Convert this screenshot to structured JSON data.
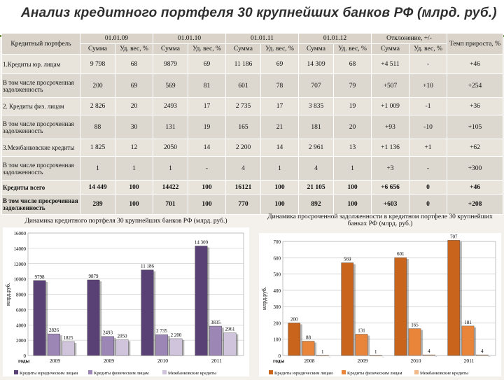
{
  "page": {
    "title": "Анализ кредитного портфеля 30 крупнейших банков РФ (млрд. руб.)"
  },
  "table": {
    "col_label": "Кредитный портфель",
    "dates": [
      "01.01.09",
      "01.01.10",
      "01.01.11",
      "01.01.12"
    ],
    "deviation": "Отклонение, +/-",
    "growth": "Темп прироста, %",
    "sub_sum": "Сумма",
    "sub_share": "Уд. вес, %",
    "rows": [
      {
        "label": "1.Кредиты юр. лицам",
        "cells": [
          "9 798",
          "68",
          "9879",
          "69",
          "11 186",
          "69",
          "14 309",
          "68",
          "+4 511",
          "-",
          "+46"
        ],
        "bold": false
      },
      {
        "label": "В том числе просроченная задолженность",
        "cells": [
          "200",
          "69",
          "569",
          "81",
          "601",
          "78",
          "707",
          "79",
          "+507",
          "+10",
          "+254"
        ],
        "bold": false
      },
      {
        "label": "2. Кредиты физ. лицам",
        "cells": [
          "2 826",
          "20",
          "2493",
          "17",
          "2 735",
          "17",
          "3 835",
          "19",
          "+1 009",
          "-1",
          "+36"
        ],
        "bold": false
      },
      {
        "label": "В том числе просроченная задолженность",
        "cells": [
          "88",
          "30",
          "131",
          "19",
          "165",
          "21",
          "181",
          "20",
          "+93",
          "-10",
          "+105"
        ],
        "bold": false
      },
      {
        "label": "3.Межбанковские кредиты",
        "cells": [
          "1 825",
          "12",
          "2050",
          "14",
          "2 200",
          "14",
          "2 961",
          "13",
          "+1 136",
          "+1",
          "+62"
        ],
        "bold": false
      },
      {
        "label": "В том числе просроченная задолженность",
        "cells": [
          "1",
          "1",
          "1",
          "-",
          "4",
          "1",
          "4",
          "1",
          "+3",
          "-",
          "+300"
        ],
        "bold": false
      },
      {
        "label": "Кредиты всего",
        "cells": [
          "14 449",
          "100",
          "14422",
          "100",
          "16121",
          "100",
          "21 105",
          "100",
          "+6 656",
          "0",
          "+46"
        ],
        "bold": true
      },
      {
        "label": "В том числе просроченная задолженность",
        "cells": [
          "289",
          "100",
          "701",
          "100",
          "770",
          "100",
          "892",
          "100",
          "+603",
          "0",
          "+208"
        ],
        "bold": true
      }
    ]
  },
  "chart_data": [
    {
      "type": "bar",
      "title": "Динамика кредитного портфеля 30 крупнейших банков РФ (млрд. руб.)",
      "ylabel": "млрд.руб.",
      "xlabel": "годы",
      "categories": [
        "2009",
        "2009",
        "2010",
        "2011"
      ],
      "ylim": [
        0,
        16000
      ],
      "yticks": [
        0,
        2000,
        4000,
        6000,
        8000,
        10000,
        12000,
        14000,
        16000
      ],
      "series": [
        {
          "name": "Кредиты юридическим лицам",
          "values": [
            9798,
            9879,
            11186,
            14309
          ],
          "labels": [
            "9798",
            "9879",
            "11 186",
            "14 309"
          ],
          "color": "#5a4175"
        },
        {
          "name": "Кредиты физическим лицам",
          "values": [
            2826,
            2493,
            2735,
            3835
          ],
          "labels": [
            "2826",
            "2493",
            "2 735",
            "3835"
          ],
          "color": "#9c86b5"
        },
        {
          "name": "Межбанковские кредиты",
          "values": [
            1825,
            2050,
            2200,
            2961
          ],
          "labels": [
            "1825",
            "2050",
            "2 200",
            "2961"
          ],
          "color": "#cfc4dc"
        }
      ]
    },
    {
      "type": "bar",
      "title": "Динамика просроченной задолженности в кредитном портфеле 30 крупнейших банках РФ (млрд. руб.)",
      "ylabel": "млрд.руб.",
      "xlabel": "годы",
      "categories": [
        "2008",
        "2009",
        "2010",
        "2011"
      ],
      "ylim": [
        0,
        700
      ],
      "yticks": [
        0,
        100,
        200,
        300,
        400,
        500,
        600,
        700
      ],
      "series": [
        {
          "name": "Кредиты юридическим лицам",
          "values": [
            200,
            569,
            601,
            707
          ],
          "labels": [
            "200",
            "569",
            "601",
            "707"
          ],
          "color": "#c8641c"
        },
        {
          "name": "Кредиты физическим лицам",
          "values": [
            88,
            131,
            165,
            181
          ],
          "labels": [
            "88",
            "131",
            "165",
            "181"
          ],
          "color": "#e8853a"
        },
        {
          "name": "Межбанковские кредиты",
          "values": [
            1,
            1,
            4,
            4
          ],
          "labels": [
            "1",
            "1",
            "4",
            "4"
          ],
          "color": "#f2b98a"
        }
      ]
    }
  ]
}
